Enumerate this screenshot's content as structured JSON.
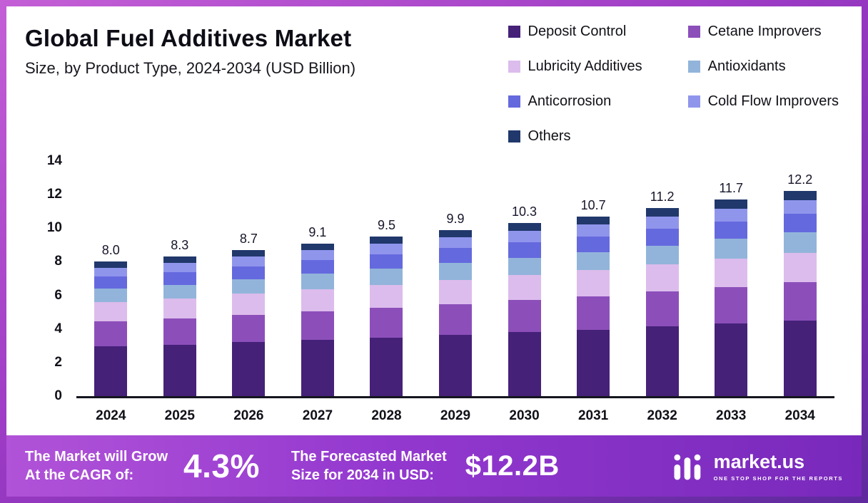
{
  "title": "Global Fuel Additives Market",
  "subtitle": "Size, by Product Type, 2024-2034 (USD Billion)",
  "chart_data": {
    "type": "bar",
    "stacked": true,
    "title": "Global Fuel Additives Market Size, by Product Type, 2024-2034 (USD Billion)",
    "xlabel": "",
    "ylabel": "USD Billion",
    "ylim": [
      0,
      14
    ],
    "yticks": [
      0,
      2,
      4,
      6,
      8,
      10,
      12,
      14
    ],
    "grid": false,
    "legend_position": "top-right",
    "categories": [
      "2024",
      "2025",
      "2026",
      "2027",
      "2028",
      "2029",
      "2030",
      "2031",
      "2032",
      "2033",
      "2034"
    ],
    "totals": [
      8.0,
      8.3,
      8.7,
      9.1,
      9.5,
      9.9,
      10.3,
      10.7,
      11.2,
      11.7,
      12.2
    ],
    "series": [
      {
        "name": "Deposit Control",
        "color": "#452178",
        "values": [
          2.96,
          3.07,
          3.22,
          3.37,
          3.5,
          3.66,
          3.81,
          3.96,
          4.15,
          4.33,
          4.51
        ]
      },
      {
        "name": "Cetane Improvers",
        "color": "#8c4fba",
        "values": [
          1.48,
          1.54,
          1.61,
          1.68,
          1.76,
          1.83,
          1.91,
          1.98,
          2.07,
          2.16,
          2.26
        ]
      },
      {
        "name": "Lubricity Additives",
        "color": "#dcbcec",
        "values": [
          1.16,
          1.2,
          1.26,
          1.32,
          1.38,
          1.44,
          1.49,
          1.55,
          1.62,
          1.7,
          1.77
        ]
      },
      {
        "name": "Antioxidants",
        "color": "#92b4da",
        "values": [
          0.8,
          0.83,
          0.87,
          0.91,
          0.95,
          0.99,
          1.03,
          1.07,
          1.12,
          1.17,
          1.22
        ]
      },
      {
        "name": "Anticorrosion",
        "color": "#6569de",
        "values": [
          0.72,
          0.75,
          0.78,
          0.82,
          0.86,
          0.89,
          0.93,
          0.96,
          1.01,
          1.05,
          1.1
        ]
      },
      {
        "name": "Cold Flow Improvers",
        "color": "#9095ec",
        "values": [
          0.52,
          0.54,
          0.57,
          0.59,
          0.62,
          0.64,
          0.67,
          0.7,
          0.73,
          0.76,
          0.79
        ]
      },
      {
        "name": "Others",
        "color": "#20386b",
        "values": [
          0.36,
          0.37,
          0.39,
          0.41,
          0.43,
          0.45,
          0.46,
          0.48,
          0.5,
          0.53,
          0.55
        ]
      }
    ]
  },
  "footer": {
    "cagr_label_line1": "The Market will Grow",
    "cagr_label_line2": "At the CAGR of:",
    "cagr_value": "4.3%",
    "forecast_label_line1": "The Forecasted Market",
    "forecast_label_line2": "Size for 2034 in USD:",
    "forecast_value": "$12.2B",
    "brand_name": "market.us",
    "brand_tagline": "ONE STOP SHOP FOR THE REPORTS"
  }
}
